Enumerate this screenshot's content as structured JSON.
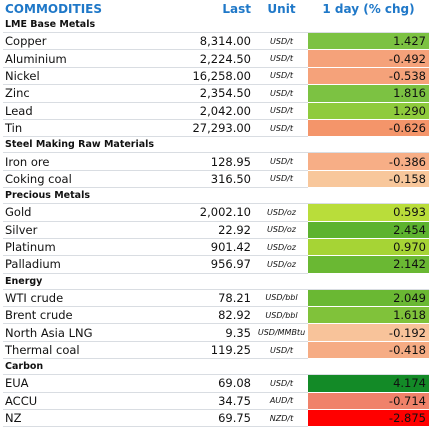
{
  "header": {
    "title": "COMMODITIES",
    "last": "Last",
    "unit": "Unit",
    "change": "1 day (% chg)"
  },
  "sections": [
    {
      "name": "LME Base Metals",
      "rows": [
        {
          "name": "Copper",
          "last": "8,314.00",
          "unit": "USD/t",
          "change": "1.427",
          "color": "#7cc242"
        },
        {
          "name": "Aluminium",
          "last": "2,224.50",
          "unit": "USD/t",
          "change": "-0.492",
          "color": "#f5a27a"
        },
        {
          "name": "Nickel",
          "last": "16,258.00",
          "unit": "USD/t",
          "change": "-0.538",
          "color": "#f5a27a"
        },
        {
          "name": "Zinc",
          "last": "2,354.50",
          "unit": "USD/t",
          "change": "1.816",
          "color": "#7cc242"
        },
        {
          "name": "Lead",
          "last": "2,042.00",
          "unit": "USD/t",
          "change": "1.290",
          "color": "#8fcb3c"
        },
        {
          "name": "Tin",
          "last": "27,293.00",
          "unit": "USD/t",
          "change": "-0.626",
          "color": "#f4956a"
        }
      ]
    },
    {
      "name": "Steel Making Raw Materials",
      "rows": [
        {
          "name": "Iron ore",
          "last": "128.95",
          "unit": "USD/t",
          "change": "-0.386",
          "color": "#f7ae86"
        },
        {
          "name": "Coking coal",
          "last": "316.50",
          "unit": "USD/t",
          "change": "-0.158",
          "color": "#f8c79b"
        }
      ]
    },
    {
      "name": "Precious Metals",
      "rows": [
        {
          "name": "Gold",
          "last": "2,002.10",
          "unit": "USD/oz",
          "change": "0.593",
          "color": "#b9dd3a"
        },
        {
          "name": "Silver",
          "last": "22.92",
          "unit": "USD/oz",
          "change": "2.454",
          "color": "#5db32f"
        },
        {
          "name": "Platinum",
          "last": "901.42",
          "unit": "USD/oz",
          "change": "0.970",
          "color": "#a6d435"
        },
        {
          "name": "Palladium",
          "last": "956.97",
          "unit": "USD/oz",
          "change": "2.142",
          "color": "#6ab833"
        }
      ]
    },
    {
      "name": "Energy",
      "rows": [
        {
          "name": "WTI crude",
          "last": "78.21",
          "unit": "USD/bbl",
          "change": "2.049",
          "color": "#6ab833"
        },
        {
          "name": "Brent crude",
          "last": "82.92",
          "unit": "USD/bbl",
          "change": "1.618",
          "color": "#80c23a"
        },
        {
          "name": "North Asia LNG",
          "last": "9.35",
          "unit": "USD/MMBtu",
          "change": "-0.192",
          "color": "#f8c39a"
        },
        {
          "name": "Thermal coal",
          "last": "119.25",
          "unit": "USD/t",
          "change": "-0.418",
          "color": "#f6ac84"
        }
      ]
    },
    {
      "name": "Carbon",
      "rows": [
        {
          "name": "EUA",
          "last": "69.08",
          "unit": "USD/t",
          "change": "4.174",
          "color": "#138a27"
        },
        {
          "name": "ACCU",
          "last": "34.75",
          "unit": "AUD/t",
          "change": "-0.714",
          "color": "#f0826a"
        },
        {
          "name": "NZ",
          "last": "69.75",
          "unit": "NZD/t",
          "change": "-2.875",
          "color": "#ff0000"
        }
      ]
    }
  ]
}
